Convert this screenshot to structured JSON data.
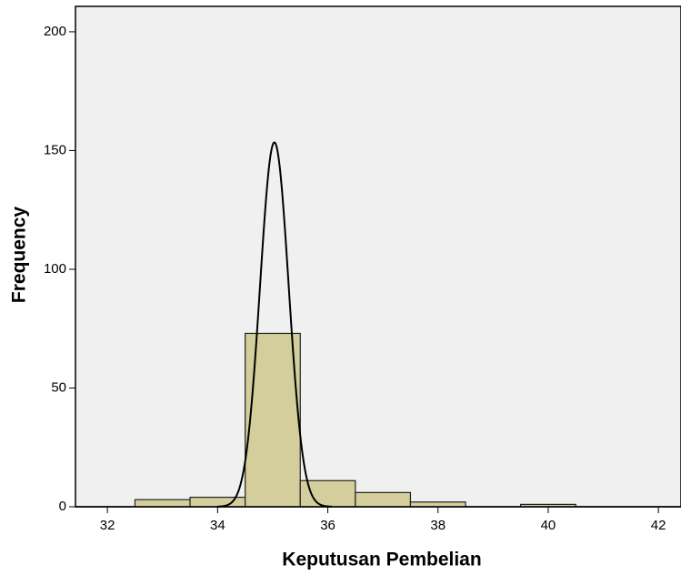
{
  "chart_data": {
    "type": "histogram",
    "x_label": "Keputusan Pembelian",
    "y_label": "Frequency",
    "bins": [
      32.5,
      33.5,
      34.5,
      35.5,
      36.5,
      37.5,
      38.5,
      39.5,
      40.5
    ],
    "counts": [
      3,
      4,
      73,
      11,
      6,
      2,
      0,
      1
    ],
    "color": "#d3ce9b",
    "normal_curve": {
      "mean": 35.03,
      "std": 0.26,
      "color": "#000000"
    },
    "xlim": [
      31.42,
      42.41
    ],
    "xticks": [
      32,
      34,
      36,
      38,
      40,
      42
    ],
    "ylim": [
      0,
      210.7
    ],
    "yticks": [
      0,
      50,
      100,
      150,
      200
    ]
  }
}
